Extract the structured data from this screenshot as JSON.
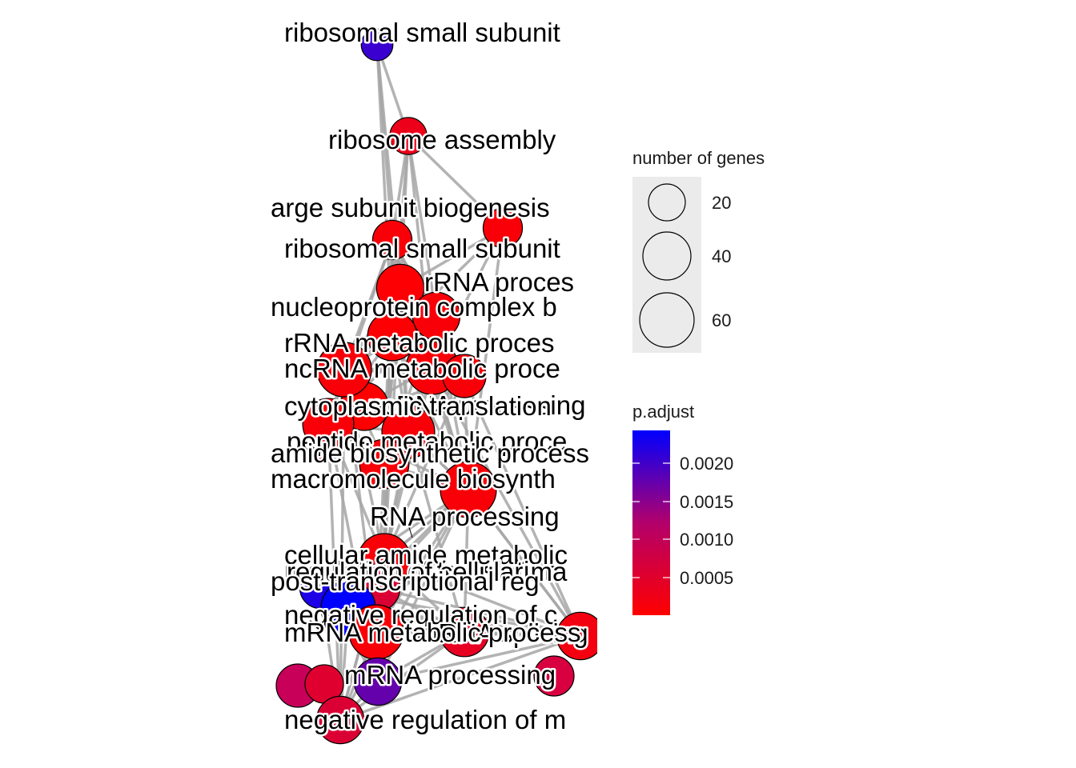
{
  "chart_data": {
    "type": "network",
    "title": "",
    "edge_color": "#a6a6a6",
    "color_scale": {
      "low": "#ff0000",
      "high": "#0000ff"
    },
    "nodes": [
      {
        "id": "n1",
        "label": "ribosomal small subunit",
        "genes": 10,
        "p_adjust": 0.0021
      },
      {
        "id": "n2",
        "label": "ribosome assembly",
        "genes": 18,
        "p_adjust": 0.0003
      },
      {
        "id": "n3",
        "label": "arge subunit biogenesis",
        "genes": 22,
        "p_adjust": 0.0001
      },
      {
        "id": "n4",
        "label": "ribosomal small subunit",
        "genes": 22,
        "p_adjust": 0.0001
      },
      {
        "id": "n5",
        "label": "rRNA proces",
        "genes": 40,
        "p_adjust": 5e-05
      },
      {
        "id": "n6",
        "label": "nucleoprotein complex b",
        "genes": 40,
        "p_adjust": 0.0001
      },
      {
        "id": "n7",
        "label": "rRNA metabolic proces",
        "genes": 45,
        "p_adjust": 5e-05
      },
      {
        "id": "n8",
        "label": "ncRNA metabolic proce",
        "genes": 60,
        "p_adjust": 0.0001
      },
      {
        "id": "n9",
        "label": "ncRNA processing",
        "genes": 55,
        "p_adjust": 0.0001
      },
      {
        "id": "n10",
        "label": "cytoplasmic translation",
        "genes": 30,
        "p_adjust": 0.0001
      },
      {
        "id": "n11",
        "label": "peptide metabolic proce",
        "genes": 55,
        "p_adjust": 0.0001
      },
      {
        "id": "n12",
        "label": "amide biosynthetic process",
        "genes": 50,
        "p_adjust": 0.0001
      },
      {
        "id": "n13",
        "label": "macromolecule biosynth",
        "genes": 45,
        "p_adjust": 0.0001
      },
      {
        "id": "n14",
        "label": "RNA processing",
        "genes": 65,
        "p_adjust": 0.0001
      },
      {
        "id": "n15",
        "label": "cellular amide metabolic",
        "genes": 55,
        "p_adjust": 0.0001
      },
      {
        "id": "n16",
        "label": "regulation of translation",
        "genes": 25,
        "p_adjust": 0.0023
      },
      {
        "id": "n17",
        "label": "regulation of cellular ma",
        "genes": 40,
        "p_adjust": 0.0006
      },
      {
        "id": "n18",
        "label": "post-transcriptional reg",
        "genes": 60,
        "p_adjust": 0.0025
      },
      {
        "id": "n19",
        "label": "negative regulation of c",
        "genes": 45,
        "p_adjust": 0.0004
      },
      {
        "id": "n20",
        "label": "mRNA splicing",
        "genes": 40,
        "p_adjust": 0.0002
      },
      {
        "id": "n21",
        "label": "mRNA metabolic process",
        "genes": 60,
        "p_adjust": 0.0001
      },
      {
        "id": "n22",
        "label": "mRNA processing",
        "genes": 40,
        "p_adjust": 0.0018
      },
      {
        "id": "n23",
        "label": "negative regulation of m",
        "genes": 40,
        "p_adjust": 0.0006
      }
    ],
    "legend_size": {
      "title": "number of genes",
      "values": [
        20,
        40,
        60
      ]
    },
    "legend_color": {
      "title": "p.adjust",
      "ticks": [
        "0.0020",
        "0.0015",
        "0.0010",
        "0.0005"
      ]
    }
  }
}
